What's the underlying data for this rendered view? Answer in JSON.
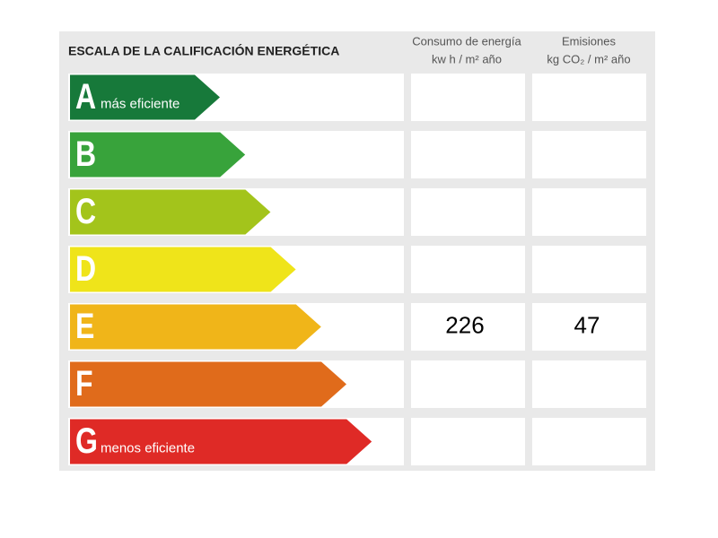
{
  "header": {
    "title": "ESCALA DE LA CALIFICACIÓN ENERGÉTICA",
    "columns": [
      {
        "name": "Consumo de energía",
        "unit": "kw h / m² año"
      },
      {
        "name": "Emisiones",
        "unit": "kg CO₂ / m² año"
      }
    ]
  },
  "rows": [
    {
      "letter": "A",
      "label": "más eficiente",
      "color": "#17793a"
    },
    {
      "letter": "B",
      "color": "#38a33b"
    },
    {
      "letter": "C",
      "color": "#a3c41b"
    },
    {
      "letter": "D",
      "color": "#efe41a"
    },
    {
      "letter": "E",
      "color": "#f0b519",
      "consumo": 226,
      "emisiones": 47
    },
    {
      "letter": "F",
      "color": "#e06b1b"
    },
    {
      "letter": "G",
      "label": "menos eficiente",
      "color": "#df2a26"
    }
  ]
}
